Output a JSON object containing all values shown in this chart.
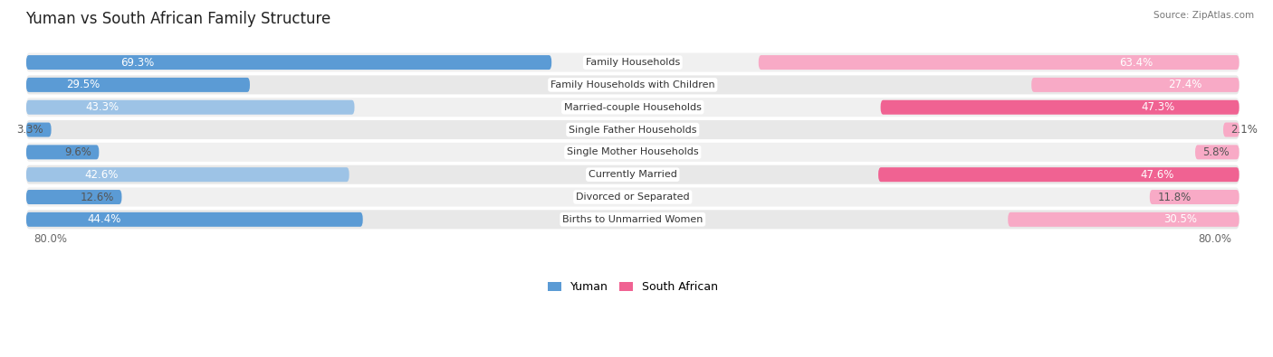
{
  "title": "Yuman vs South African Family Structure",
  "source": "Source: ZipAtlas.com",
  "categories": [
    "Family Households",
    "Family Households with Children",
    "Married-couple Households",
    "Single Father Households",
    "Single Mother Households",
    "Currently Married",
    "Divorced or Separated",
    "Births to Unmarried Women"
  ],
  "yuman_values": [
    69.3,
    29.5,
    43.3,
    3.3,
    9.6,
    42.6,
    12.6,
    44.4
  ],
  "sa_values": [
    63.4,
    27.4,
    47.3,
    2.1,
    5.8,
    47.6,
    11.8,
    30.5
  ],
  "max_val": 80.0,
  "yuman_color_strong": "#5b9bd5",
  "yuman_color_light": "#9dc3e6",
  "sa_color_strong": "#f06292",
  "sa_color_light": "#f8aac6",
  "row_bg_even": "#f0f0f0",
  "row_bg_odd": "#e8e8e8",
  "label_fontsize": 8.0,
  "value_fontsize": 8.5,
  "title_fontsize": 12,
  "legend_fontsize": 9
}
